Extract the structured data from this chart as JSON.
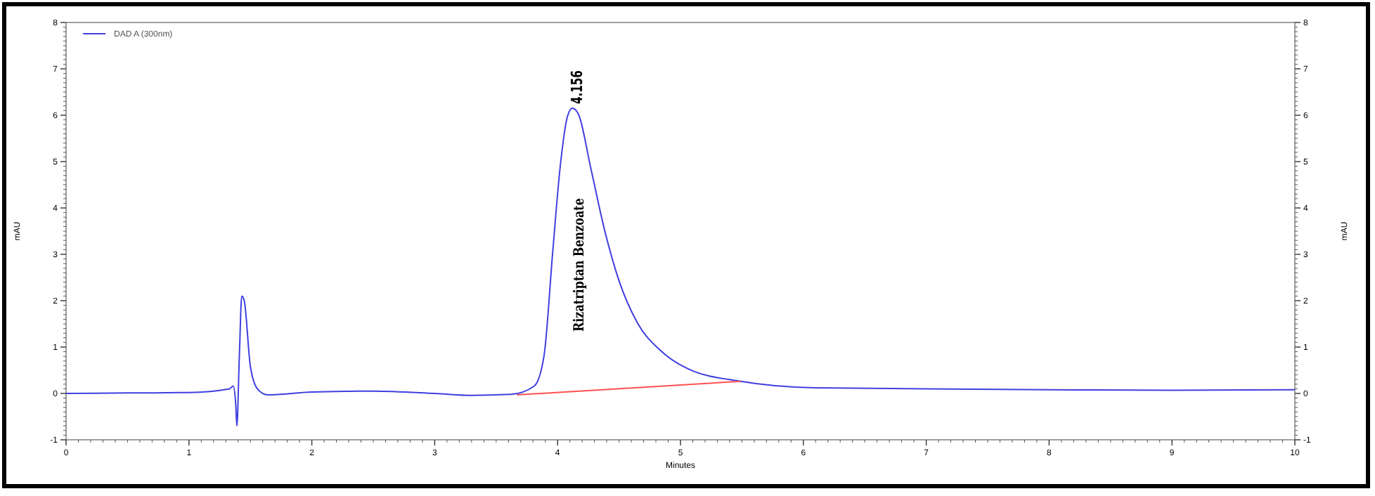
{
  "chart_data": {
    "type": "line",
    "xlabel": "Minutes",
    "ylabel": "mAU",
    "y2label": "mAU",
    "xlim": [
      0,
      10
    ],
    "xticks": [
      0,
      1,
      2,
      3,
      4,
      5,
      6,
      7,
      8,
      9,
      10
    ],
    "ylim": [
      -1,
      8
    ],
    "yticks": [
      -1,
      0,
      1,
      2,
      3,
      4,
      5,
      6,
      7,
      8
    ],
    "y2lim": [
      -1,
      8
    ],
    "y2ticks": [
      -1,
      0,
      1,
      2,
      3,
      4,
      5,
      6,
      7,
      8
    ],
    "legend": "top left",
    "grid": false,
    "marker": "none",
    "line_style": "solid",
    "series": [
      {
        "name": "DAD A (300nm)",
        "color": "#3f3fe0",
        "x": [
          0,
          0.5,
          1,
          1.33,
          1.36,
          1.38,
          1.39,
          1.41,
          1.43,
          1.45,
          1.5,
          1.56,
          1.64,
          2,
          2.5,
          3,
          3.3,
          3.62,
          3.81,
          3.89,
          3.96,
          4.02,
          4.08,
          4.12,
          4.17,
          4.27,
          4.38,
          4.5,
          4.65,
          4.84,
          5.07,
          5.49,
          6.1,
          7,
          8,
          9,
          10
        ],
        "values": [
          0,
          0.01,
          0.02,
          0.1,
          0.16,
          -0.2,
          -0.7,
          0.8,
          2.1,
          2.0,
          0.58,
          0.09,
          -0.03,
          0.03,
          0.05,
          0,
          -0.04,
          -0.02,
          0.16,
          0.82,
          3.04,
          4.86,
          5.97,
          6.15,
          6.02,
          4.86,
          3.55,
          2.43,
          1.52,
          0.92,
          0.52,
          0.26,
          0.12,
          0.1,
          0.08,
          0.07,
          0.08
        ]
      },
      {
        "color": "#ff5050",
        "x": [
          3.67,
          5.49
        ],
        "values": [
          -0.03,
          0.26
        ]
      }
    ],
    "annotations": [
      {
        "text": "4.156",
        "x": 4.156,
        "y": 6.15
      },
      "Rizatriptan Benzoate"
    ]
  }
}
